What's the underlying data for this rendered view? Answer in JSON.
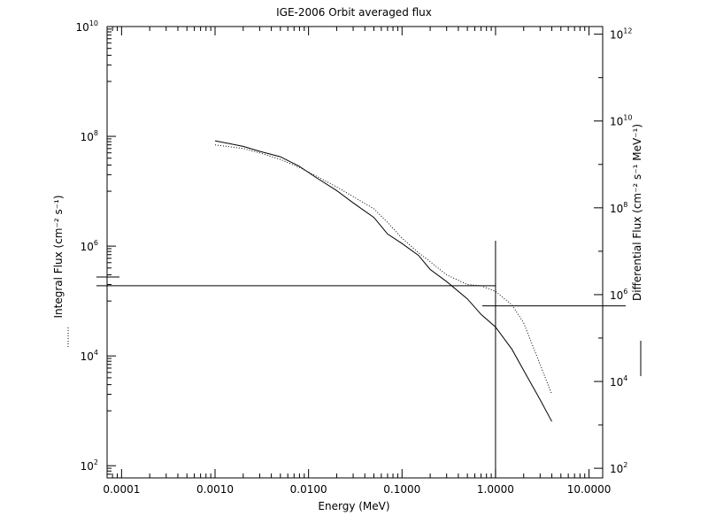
{
  "chart_data": {
    "type": "line",
    "title": "IGE-2006 Orbit averaged flux",
    "xlabel": "Energy (MeV)",
    "ylabel_left": "Integral Flux (cm⁻² s⁻¹)",
    "ylabel_right": "Differential Flux (cm⁻² s⁻¹ MeV⁻¹)",
    "x_scale": "log",
    "y_scale": "log",
    "xlim": [
      7e-05,
      14
    ],
    "ylim_left": [
      60,
      10000000000
    ],
    "ylim_right": [
      60,
      1500000000000
    ],
    "grid": false,
    "x_ticks": [
      {
        "value": 0.0001,
        "label": "0.0001"
      },
      {
        "value": 0.001,
        "label": "0.0010"
      },
      {
        "value": 0.01,
        "label": "0.0100"
      },
      {
        "value": 0.1,
        "label": "0.1000"
      },
      {
        "value": 1,
        "label": "1.0000"
      },
      {
        "value": 10,
        "label": "10.0000"
      }
    ],
    "y_ticks_left": [
      {
        "value": 100,
        "base": "10",
        "exp": "2"
      },
      {
        "value": 10000,
        "base": "10",
        "exp": "4"
      },
      {
        "value": 1000000,
        "base": "10",
        "exp": "6"
      },
      {
        "value": 100000000,
        "base": "10",
        "exp": "8"
      },
      {
        "value": 10000000000,
        "base": "10",
        "exp": "10"
      }
    ],
    "y_ticks_right": [
      {
        "value": 100,
        "base": "10",
        "exp": "2"
      },
      {
        "value": 10000,
        "base": "10",
        "exp": "4"
      },
      {
        "value": 1000000,
        "base": "10",
        "exp": "6"
      },
      {
        "value": 100000000,
        "base": "10",
        "exp": "8"
      },
      {
        "value": 10000000000,
        "base": "10",
        "exp": "10"
      },
      {
        "value": 1000000000000,
        "base": "10",
        "exp": "12"
      }
    ],
    "series": [
      {
        "axis": "left",
        "style": "dotted",
        "x": [
          0.001,
          0.002,
          0.003,
          0.005,
          0.008,
          0.012,
          0.02,
          0.03,
          0.05,
          0.07,
          0.1,
          0.15,
          0.2,
          0.3,
          0.5,
          0.7,
          1.0,
          1.5,
          2.0,
          3.0,
          4.0
        ],
        "y": [
          70000000,
          60000000,
          50000000,
          38000000,
          27000000,
          19000000,
          12000000,
          8000000,
          4800000,
          2700000,
          1400000,
          760000,
          520000,
          300000,
          200000,
          190000,
          150000,
          85000,
          40000,
          7000,
          2000
        ]
      },
      {
        "axis": "right",
        "style": "solid",
        "x": [
          0.001,
          0.002,
          0.003,
          0.005,
          0.008,
          0.012,
          0.02,
          0.03,
          0.05,
          0.07,
          0.1,
          0.15,
          0.2,
          0.3,
          0.5,
          0.7,
          1.0,
          1.5,
          2.0,
          3.0,
          4.0
        ],
        "y": [
          3500000000,
          2600000000,
          2000000000,
          1500000000,
          900000000,
          500000000,
          250000000,
          130000000,
          60000000,
          25000000,
          15000000,
          8000000,
          3800000,
          2000000,
          800000,
          350000,
          180000,
          55000,
          18000,
          3800,
          1200
        ]
      }
    ],
    "crosshair": {
      "x": 1.0,
      "y_left": 190000,
      "y_right": 550000
    },
    "legend": {
      "left": "dotted",
      "right": "solid"
    }
  }
}
